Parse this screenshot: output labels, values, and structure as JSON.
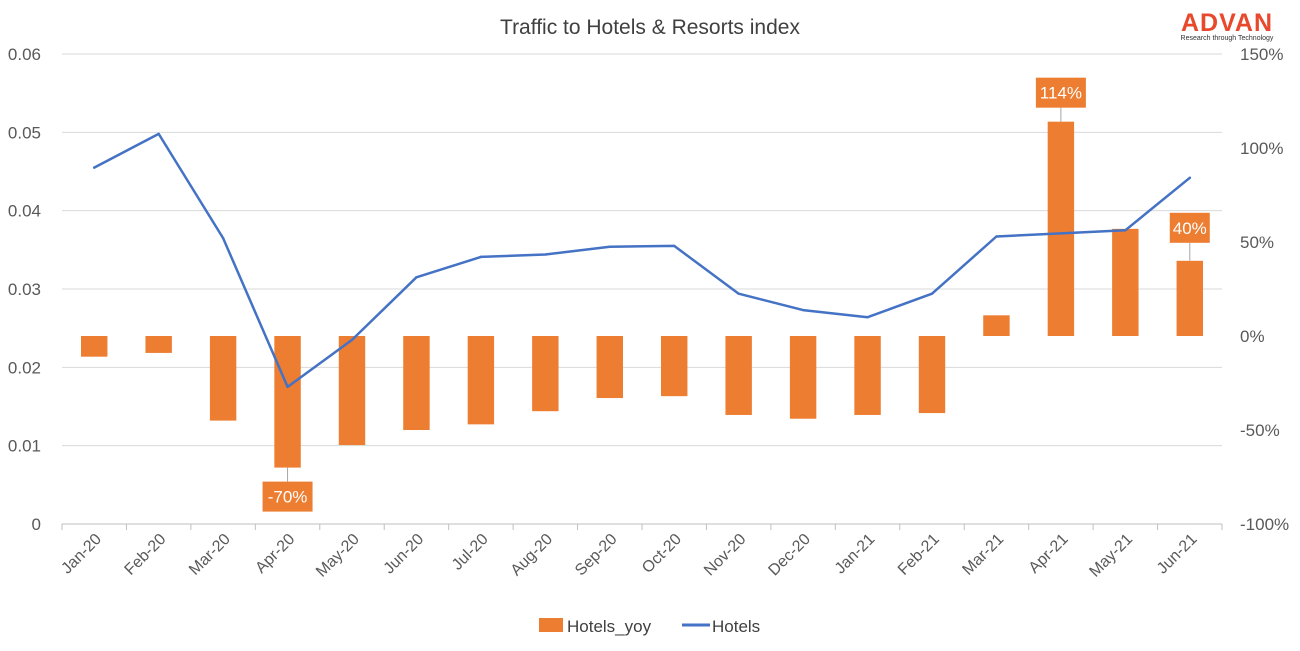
{
  "brand": {
    "name": "ADVAN",
    "tagline": "Research through Technology",
    "color": "#e8482c"
  },
  "chart_data": {
    "type": "bar",
    "title": "Traffic to Hotels & Resorts index",
    "categories": [
      "Jan-20",
      "Feb-20",
      "Mar-20",
      "Apr-20",
      "May-20",
      "Jun-20",
      "Jul-20",
      "Aug-20",
      "Sep-20",
      "Oct-20",
      "Nov-20",
      "Dec-20",
      "Jan-21",
      "Feb-21",
      "Mar-21",
      "Apr-21",
      "May-21",
      "Jun-21"
    ],
    "left_axis": {
      "range": [
        0,
        0.06
      ],
      "ticks": [
        "0",
        "0.01",
        "0.02",
        "0.03",
        "0.04",
        "0.05",
        "0.06"
      ]
    },
    "right_axis": {
      "range": [
        -100,
        150
      ],
      "ticks": [
        "-100%",
        "-50%",
        "0%",
        "50%",
        "100%",
        "150%"
      ]
    },
    "grid": true,
    "legend_position": "bottom",
    "series": [
      {
        "name": "Hotels_yoy",
        "type": "bar",
        "axis": "right",
        "color": "#ed7d31",
        "values": [
          -11,
          -9,
          -45,
          -70,
          -58,
          -50,
          -47,
          -40,
          -33,
          -32,
          -42,
          -44,
          -42,
          -41,
          11,
          114,
          57,
          40
        ]
      },
      {
        "name": "Hotels",
        "type": "line",
        "axis": "left",
        "color": "#4472c4",
        "values": [
          0.0455,
          0.0498,
          0.0365,
          0.0175,
          0.0235,
          0.0315,
          0.0341,
          0.0344,
          0.0354,
          0.0355,
          0.0294,
          0.0273,
          0.0264,
          0.0294,
          0.0367,
          0.0371,
          0.0375,
          0.0442
        ]
      }
    ],
    "data_labels": [
      {
        "category": "Apr-20",
        "text": "-70%"
      },
      {
        "category": "Apr-21",
        "text": "114%"
      },
      {
        "category": "Jun-21",
        "text": "40%"
      }
    ]
  }
}
